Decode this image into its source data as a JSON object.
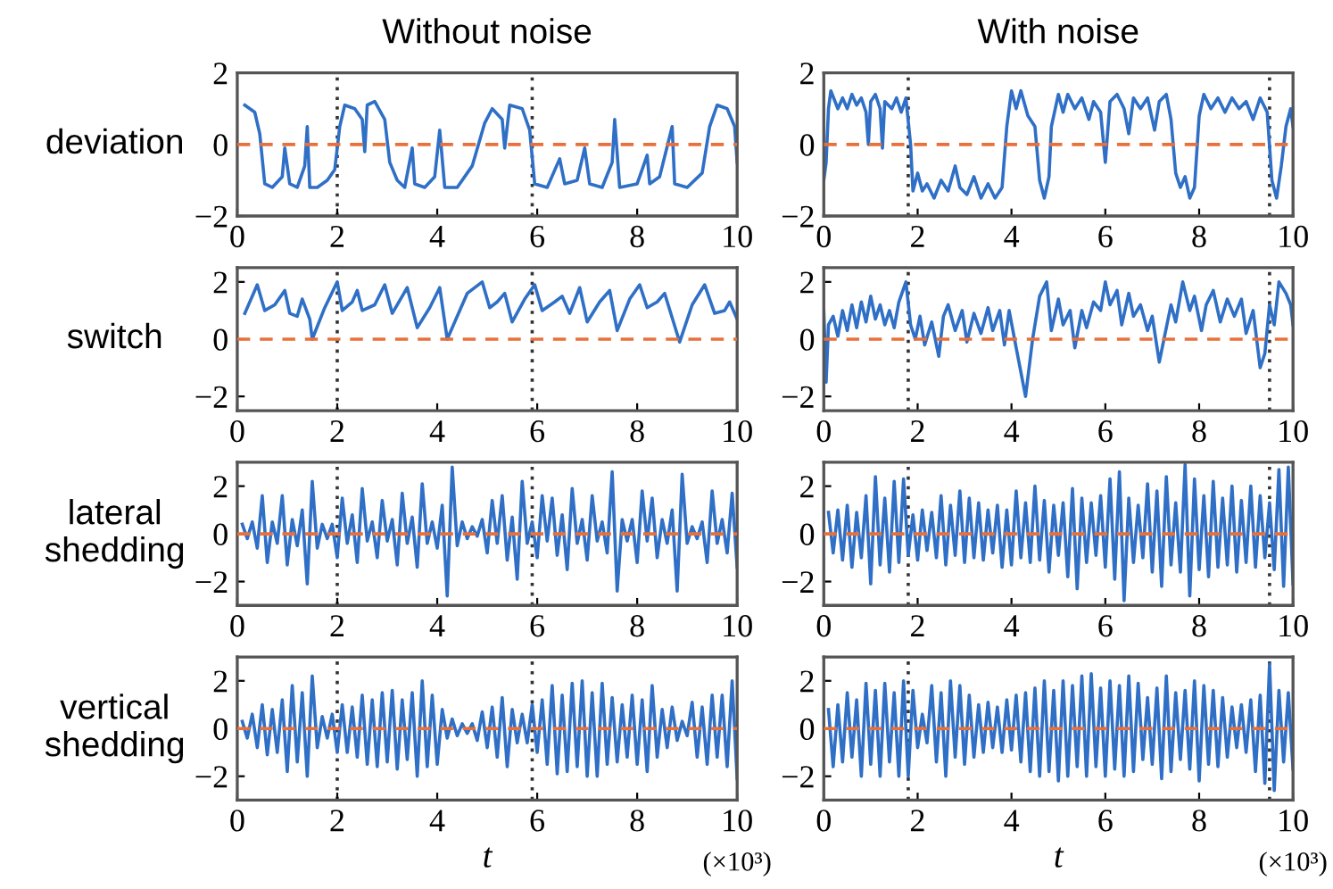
{
  "chart_data": [
    {
      "type": "line",
      "title": "Without noise",
      "ylabel": "deviation",
      "xlim": [
        0,
        10
      ],
      "xticks": [
        0,
        2,
        4,
        6,
        8,
        10
      ],
      "ylim": [
        -2,
        2
      ],
      "yticks": [
        -2,
        0,
        2
      ],
      "series": [
        {
          "color": "#2f6fc6",
          "x": [
            0.15,
            0.35,
            0.45,
            0.55,
            0.7,
            0.9,
            0.95,
            1.05,
            1.2,
            1.35,
            1.4,
            1.45,
            1.6,
            1.8,
            1.95,
            2.05,
            2.15,
            2.35,
            2.5,
            2.55,
            2.6,
            2.75,
            2.95,
            3.05,
            3.2,
            3.35,
            3.5,
            3.55,
            3.75,
            3.95,
            4.05,
            4.15,
            4.4,
            4.7,
            4.95,
            5.1,
            5.3,
            5.35,
            5.45,
            5.7,
            5.85,
            5.95,
            6.2,
            6.45,
            6.55,
            6.8,
            6.95,
            7.05,
            7.3,
            7.5,
            7.55,
            7.65,
            8.0,
            8.2,
            8.25,
            8.45,
            8.7,
            8.75,
            9.0,
            9.3,
            9.45,
            9.6,
            9.8,
            9.95,
            10
          ],
          "values": [
            1.1,
            0.9,
            0.3,
            -1.1,
            -1.2,
            -0.9,
            -0.1,
            -1.1,
            -1.2,
            -0.6,
            0.5,
            -1.2,
            -1.2,
            -1.0,
            -0.7,
            0.5,
            1.1,
            1.0,
            0.7,
            -0.2,
            1.1,
            1.2,
            0.7,
            -0.5,
            -1.0,
            -1.2,
            -0.1,
            -1.1,
            -1.2,
            -0.9,
            0.4,
            -1.2,
            -1.2,
            -0.6,
            0.6,
            1.0,
            0.7,
            -0.1,
            1.1,
            1.0,
            0.4,
            -1.1,
            -1.2,
            -0.4,
            -1.1,
            -1.0,
            -0.1,
            -1.1,
            -1.2,
            -0.5,
            0.7,
            -1.2,
            -1.1,
            -0.3,
            -1.1,
            -0.9,
            0.5,
            -1.1,
            -1.2,
            -0.8,
            0.5,
            1.1,
            1.0,
            0.5,
            -0.5
          ]
        }
      ],
      "ref_lines": [
        {
          "axis": "y",
          "value": 0,
          "color": "#e8703a",
          "line_style": "dashed"
        },
        {
          "axis": "x",
          "value": 2,
          "color": "#333333",
          "line_style": "dotted"
        },
        {
          "axis": "x",
          "value": 5.9,
          "color": "#333333",
          "line_style": "dotted"
        }
      ]
    },
    {
      "type": "line",
      "title": "With noise",
      "xlim": [
        0,
        10
      ],
      "xticks": [
        0,
        2,
        4,
        6,
        8,
        10
      ],
      "ylim": [
        -2,
        2
      ],
      "yticks": [
        -2,
        0,
        2
      ],
      "series": [
        {
          "color": "#2f6fc6",
          "x": [
            0,
            0.05,
            0.1,
            0.15,
            0.3,
            0.4,
            0.5,
            0.6,
            0.7,
            0.8,
            0.9,
            0.95,
            1.0,
            1.1,
            1.2,
            1.25,
            1.3,
            1.45,
            1.55,
            1.65,
            1.75,
            1.85,
            1.9,
            2.0,
            2.1,
            2.2,
            2.35,
            2.5,
            2.65,
            2.8,
            2.9,
            3.05,
            3.2,
            3.35,
            3.5,
            3.65,
            3.8,
            3.9,
            4.0,
            4.1,
            4.2,
            4.35,
            4.5,
            4.6,
            4.7,
            4.8,
            4.85,
            5.0,
            5.1,
            5.2,
            5.35,
            5.5,
            5.65,
            5.75,
            5.9,
            6.0,
            6.1,
            6.25,
            6.4,
            6.5,
            6.6,
            6.75,
            6.9,
            7.05,
            7.15,
            7.3,
            7.4,
            7.5,
            7.6,
            7.7,
            7.8,
            7.9,
            8.0,
            8.1,
            8.25,
            8.4,
            8.55,
            8.7,
            8.85,
            9.0,
            9.15,
            9.3,
            9.45,
            9.55,
            9.65,
            9.75,
            9.85,
            9.95,
            10
          ],
          "values": [
            -1.0,
            -0.5,
            1.0,
            1.5,
            1.0,
            1.3,
            1.0,
            1.4,
            1.1,
            1.3,
            0.9,
            0.0,
            1.2,
            1.4,
            1.0,
            -0.1,
            1.2,
            1.0,
            1.3,
            0.9,
            1.3,
            0.0,
            -1.3,
            -0.8,
            -1.3,
            -1.1,
            -1.5,
            -1.0,
            -1.3,
            -0.6,
            -1.2,
            -1.4,
            -0.9,
            -1.5,
            -1.1,
            -1.5,
            -1.2,
            0.5,
            1.5,
            1.0,
            1.5,
            0.8,
            0.5,
            -1.0,
            -1.5,
            -0.9,
            0.5,
            1.4,
            0.9,
            1.4,
            1.0,
            1.3,
            0.7,
            1.2,
            0.9,
            -0.5,
            1.2,
            1.4,
            1.0,
            0.3,
            1.3,
            1.0,
            1.3,
            0.4,
            1.2,
            1.4,
            0.7,
            -0.8,
            -1.2,
            -0.9,
            -1.5,
            -1.2,
            0.8,
            1.4,
            1.0,
            1.3,
            0.9,
            1.3,
            1.0,
            1.2,
            0.7,
            1.3,
            0.9,
            -1.0,
            -1.5,
            -0.6,
            0.5,
            1.0,
            0.5
          ]
        }
      ],
      "ref_lines": [
        {
          "axis": "y",
          "value": 0,
          "color": "#e8703a",
          "line_style": "dashed"
        },
        {
          "axis": "x",
          "value": 1.8,
          "color": "#333333",
          "line_style": "dotted"
        },
        {
          "axis": "x",
          "value": 9.5,
          "color": "#333333",
          "line_style": "dotted"
        }
      ]
    },
    {
      "type": "line",
      "ylabel": "switch",
      "xlim": [
        0,
        10
      ],
      "xticks": [
        0,
        2,
        4,
        6,
        8,
        10
      ],
      "ylim": [
        -2.5,
        2.5
      ],
      "yticks": [
        -2,
        0,
        2
      ],
      "series": [
        {
          "color": "#2f6fc6",
          "x": [
            0.15,
            0.4,
            0.55,
            0.75,
            0.95,
            1.05,
            1.2,
            1.3,
            1.45,
            1.5,
            1.75,
            2.0,
            2.1,
            2.3,
            2.4,
            2.5,
            2.75,
            2.95,
            3.1,
            3.3,
            3.4,
            3.6,
            3.85,
            4.05,
            4.2,
            4.6,
            4.9,
            5.05,
            5.2,
            5.35,
            5.5,
            5.75,
            5.95,
            6.1,
            6.35,
            6.5,
            6.65,
            6.85,
            7.0,
            7.25,
            7.45,
            7.6,
            7.85,
            8.05,
            8.2,
            8.4,
            8.55,
            8.85,
            9.1,
            9.35,
            9.55,
            9.75,
            9.85,
            10
          ],
          "values": [
            0.9,
            1.9,
            1.0,
            1.2,
            1.7,
            0.9,
            0.8,
            1.4,
            0.7,
            0.0,
            1.1,
            2.0,
            1.0,
            1.3,
            1.7,
            1.0,
            1.2,
            1.9,
            0.9,
            1.5,
            1.8,
            0.4,
            1.1,
            1.8,
            0.0,
            1.6,
            2.0,
            1.1,
            1.3,
            1.6,
            0.6,
            1.4,
            1.9,
            1.0,
            1.3,
            1.5,
            0.9,
            1.8,
            0.6,
            1.3,
            1.7,
            0.3,
            1.4,
            1.9,
            1.1,
            1.3,
            1.6,
            -0.1,
            1.2,
            1.9,
            0.9,
            1.0,
            1.3,
            0.7
          ]
        }
      ],
      "ref_lines": [
        {
          "axis": "y",
          "value": 0,
          "color": "#e8703a",
          "line_style": "dashed"
        },
        {
          "axis": "x",
          "value": 2,
          "color": "#333333",
          "line_style": "dotted"
        },
        {
          "axis": "x",
          "value": 5.9,
          "color": "#333333",
          "line_style": "dotted"
        }
      ]
    },
    {
      "type": "line",
      "xlim": [
        0,
        10
      ],
      "xticks": [
        0,
        2,
        4,
        6,
        8,
        10
      ],
      "ylim": [
        -2.5,
        2.5
      ],
      "yticks": [
        -2,
        0,
        2
      ],
      "series": [
        {
          "color": "#2f6fc6",
          "x": [
            0,
            0.05,
            0.1,
            0.2,
            0.3,
            0.4,
            0.5,
            0.6,
            0.7,
            0.8,
            0.9,
            1.0,
            1.1,
            1.2,
            1.3,
            1.4,
            1.5,
            1.6,
            1.75,
            1.85,
            1.95,
            2.05,
            2.15,
            2.3,
            2.45,
            2.55,
            2.65,
            2.8,
            2.95,
            3.05,
            3.2,
            3.35,
            3.5,
            3.6,
            3.75,
            3.85,
            3.95,
            4.1,
            4.3,
            4.45,
            4.6,
            4.75,
            4.85,
            5.0,
            5.1,
            5.25,
            5.35,
            5.5,
            5.6,
            5.75,
            5.9,
            6.0,
            6.1,
            6.25,
            6.35,
            6.5,
            6.6,
            6.75,
            6.9,
            7.0,
            7.15,
            7.3,
            7.4,
            7.5,
            7.65,
            7.8,
            7.9,
            8.05,
            8.15,
            8.3,
            8.45,
            8.6,
            8.75,
            8.9,
            9.0,
            9.15,
            9.3,
            9.4,
            9.5,
            9.6,
            9.7,
            9.85,
            9.95,
            10
          ],
          "values": [
            1.0,
            -1.5,
            0.5,
            0.8,
            0.1,
            1.0,
            0.3,
            1.2,
            0.4,
            1.3,
            0.6,
            1.5,
            0.7,
            1.2,
            0.5,
            1.0,
            0.4,
            1.3,
            2.0,
            0.5,
            0.0,
            0.8,
            -0.2,
            0.6,
            -0.6,
            0.8,
            1.2,
            0.3,
            1.0,
            -0.1,
            0.9,
            0.2,
            1.1,
            0.3,
            1.0,
            -0.2,
            1.0,
            -0.3,
            -2.0,
            0.0,
            1.5,
            2.0,
            0.3,
            1.4,
            0.5,
            1.0,
            -0.3,
            1.0,
            0.4,
            1.3,
            1.0,
            2.0,
            1.2,
            1.7,
            0.5,
            1.6,
            0.8,
            1.2,
            0.3,
            0.8,
            -0.8,
            0.4,
            1.2,
            0.6,
            2.0,
            1.0,
            1.5,
            0.3,
            1.2,
            1.7,
            0.6,
            1.4,
            0.8,
            1.4,
            0.2,
            1.0,
            -1.0,
            -0.5,
            1.2,
            0.5,
            2.0,
            1.6,
            1.2,
            0.5
          ]
        }
      ],
      "ref_lines": [
        {
          "axis": "y",
          "value": 0,
          "color": "#e8703a",
          "line_style": "dashed"
        },
        {
          "axis": "x",
          "value": 1.8,
          "color": "#333333",
          "line_style": "dotted"
        },
        {
          "axis": "x",
          "value": 9.5,
          "color": "#333333",
          "line_style": "dotted"
        }
      ]
    },
    {
      "type": "line",
      "ylabel": "lateral\nshedding",
      "xlim": [
        0,
        10
      ],
      "xticks": [
        0,
        2,
        4,
        6,
        8,
        10
      ],
      "ylim": [
        -3,
        3
      ],
      "yticks": [
        -2,
        0,
        2
      ],
      "series": [
        {
          "color": "#2f6fc6",
          "x": [
            0.1,
            0.2,
            0.3,
            0.4,
            0.5,
            0.6,
            0.7,
            0.8,
            0.9,
            1.0,
            1.1,
            1.2,
            1.3,
            1.4,
            1.5,
            1.6,
            1.7,
            1.8,
            1.9,
            2.0,
            2.1,
            2.2,
            2.3,
            2.4,
            2.5,
            2.6,
            2.7,
            2.8,
            2.9,
            3.0,
            3.1,
            3.2,
            3.3,
            3.4,
            3.5,
            3.6,
            3.7,
            3.8,
            3.9,
            4.0,
            4.1,
            4.2,
            4.3,
            4.4,
            4.5,
            4.6,
            4.7,
            4.8,
            4.9,
            5.0,
            5.1,
            5.2,
            5.3,
            5.4,
            5.5,
            5.6,
            5.7,
            5.8,
            5.9,
            6.0,
            6.1,
            6.2,
            6.3,
            6.4,
            6.5,
            6.6,
            6.7,
            6.8,
            6.9,
            7.0,
            7.1,
            7.2,
            7.3,
            7.4,
            7.5,
            7.6,
            7.7,
            7.8,
            7.9,
            8.0,
            8.1,
            8.2,
            8.3,
            8.4,
            8.5,
            8.6,
            8.7,
            8.8,
            8.9,
            9.0,
            9.1,
            9.2,
            9.3,
            9.4,
            9.5,
            9.6,
            9.7,
            9.8,
            9.9,
            10.0
          ],
          "values": [
            0.4,
            -0.2,
            0.5,
            -0.6,
            1.6,
            -1.2,
            0.5,
            -0.4,
            1.6,
            -1.3,
            0.6,
            -0.5,
            1.0,
            -2.1,
            2.2,
            -0.6,
            0.4,
            -0.2,
            0.4,
            -1.0,
            1.5,
            -0.4,
            0.8,
            -1.2,
            1.9,
            -0.3,
            0.5,
            -1.0,
            1.4,
            -0.3,
            0.6,
            -1.3,
            1.7,
            -0.4,
            0.7,
            -1.4,
            2.1,
            -0.4,
            0.5,
            -0.6,
            1.2,
            -2.6,
            2.8,
            -0.5,
            0.5,
            -0.2,
            0.3,
            -0.1,
            0.6,
            -0.8,
            1.4,
            -0.4,
            1.6,
            -1.1,
            0.7,
            -1.9,
            2.2,
            -0.4,
            0.5,
            -1.0,
            1.6,
            -0.3,
            1.5,
            -0.9,
            0.8,
            -1.5,
            1.9,
            -0.4,
            0.6,
            -1.1,
            1.6,
            -0.3,
            0.5,
            -0.8,
            2.6,
            -2.4,
            0.6,
            -0.3,
            0.6,
            -1.2,
            1.8,
            -0.3,
            1.5,
            -1.0,
            0.6,
            -0.4,
            1.0,
            -2.4,
            2.5,
            -0.4,
            0.3,
            -0.2,
            0.5,
            -1.2,
            1.8,
            -0.4,
            0.6,
            -0.8,
            1.7,
            -1.4
          ]
        }
      ],
      "ref_lines": [
        {
          "axis": "y",
          "value": 0,
          "color": "#e8703a",
          "line_style": "dashed"
        },
        {
          "axis": "x",
          "value": 2,
          "color": "#333333",
          "line_style": "dotted"
        },
        {
          "axis": "x",
          "value": 5.9,
          "color": "#333333",
          "line_style": "dotted"
        }
      ]
    },
    {
      "type": "line",
      "xlim": [
        0,
        10
      ],
      "xticks": [
        0,
        2,
        4,
        6,
        8,
        10
      ],
      "ylim": [
        -3,
        3
      ],
      "yticks": [
        -2,
        0,
        2
      ],
      "series": [
        {
          "color": "#2f6fc6",
          "x": [
            0.1,
            0.2,
            0.3,
            0.4,
            0.5,
            0.6,
            0.7,
            0.8,
            0.9,
            1.0,
            1.1,
            1.2,
            1.3,
            1.4,
            1.5,
            1.6,
            1.7,
            1.8,
            1.9,
            2.0,
            2.1,
            2.2,
            2.3,
            2.4,
            2.5,
            2.6,
            2.7,
            2.8,
            2.9,
            3.0,
            3.1,
            3.2,
            3.3,
            3.4,
            3.5,
            3.6,
            3.7,
            3.8,
            3.9,
            4.0,
            4.1,
            4.2,
            4.3,
            4.4,
            4.5,
            4.6,
            4.7,
            4.8,
            4.9,
            5.0,
            5.1,
            5.2,
            5.3,
            5.4,
            5.5,
            5.6,
            5.7,
            5.8,
            5.9,
            6.0,
            6.1,
            6.2,
            6.3,
            6.4,
            6.5,
            6.6,
            6.7,
            6.8,
            6.9,
            7.0,
            7.1,
            7.2,
            7.3,
            7.4,
            7.5,
            7.6,
            7.7,
            7.8,
            7.9,
            8.0,
            8.1,
            8.2,
            8.3,
            8.4,
            8.5,
            8.6,
            8.7,
            8.8,
            8.9,
            9.0,
            9.1,
            9.2,
            9.3,
            9.4,
            9.5,
            9.6,
            9.7,
            9.8,
            9.9,
            10.0
          ],
          "values": [
            0.9,
            -0.8,
            1.0,
            -1.1,
            1.2,
            -1.4,
            0.9,
            -1.0,
            1.6,
            -2.1,
            2.4,
            -1.3,
            1.5,
            -1.6,
            2.2,
            -1.2,
            2.3,
            -0.9,
            0.8,
            -1.1,
            1.0,
            -0.7,
            0.9,
            -1.0,
            1.6,
            -1.3,
            1.2,
            -0.9,
            1.8,
            -1.2,
            1.5,
            -1.0,
            1.3,
            -1.1,
            1.0,
            -0.8,
            1.2,
            -1.4,
            1.0,
            -1.3,
            1.8,
            -1.0,
            1.3,
            -1.2,
            2.0,
            -1.1,
            1.4,
            -1.6,
            1.2,
            -0.9,
            1.3,
            -1.8,
            1.9,
            -2.3,
            1.5,
            -1.2,
            1.3,
            -0.9,
            1.6,
            -1.4,
            2.3,
            -1.9,
            2.6,
            -2.8,
            1.5,
            -1.2,
            1.2,
            -1.0,
            2.1,
            -1.6,
            1.8,
            -2.2,
            2.4,
            -1.3,
            1.3,
            -1.6,
            2.9,
            -2.6,
            2.3,
            -1.5,
            1.6,
            -1.8,
            2.2,
            -1.4,
            1.5,
            -1.3,
            2.0,
            -1.6,
            1.4,
            -1.2,
            2.0,
            -1.4,
            1.6,
            -1.0,
            1.3,
            -1.5,
            2.7,
            -2.2,
            2.8,
            -2.1
          ]
        }
      ],
      "ref_lines": [
        {
          "axis": "y",
          "value": 0,
          "color": "#e8703a",
          "line_style": "dashed"
        },
        {
          "axis": "x",
          "value": 1.8,
          "color": "#333333",
          "line_style": "dotted"
        },
        {
          "axis": "x",
          "value": 9.5,
          "color": "#333333",
          "line_style": "dotted"
        }
      ]
    },
    {
      "type": "line",
      "ylabel": "vertical\nshedding",
      "xlabel": "t",
      "annotations": [
        "(×10³)"
      ],
      "xlim": [
        0,
        10
      ],
      "xticks": [
        0,
        2,
        4,
        6,
        8,
        10
      ],
      "ylim": [
        -3,
        3
      ],
      "yticks": [
        -2,
        0,
        2
      ],
      "series": [
        {
          "color": "#2f6fc6",
          "x": [
            0.1,
            0.2,
            0.3,
            0.4,
            0.5,
            0.6,
            0.7,
            0.8,
            0.9,
            1.0,
            1.1,
            1.2,
            1.3,
            1.4,
            1.5,
            1.6,
            1.7,
            1.8,
            1.9,
            2.0,
            2.1,
            2.2,
            2.3,
            2.4,
            2.5,
            2.6,
            2.7,
            2.8,
            2.9,
            3.0,
            3.1,
            3.2,
            3.3,
            3.4,
            3.5,
            3.6,
            3.7,
            3.8,
            3.9,
            4.0,
            4.1,
            4.2,
            4.3,
            4.4,
            4.5,
            4.6,
            4.7,
            4.8,
            4.9,
            5.0,
            5.1,
            5.2,
            5.3,
            5.4,
            5.5,
            5.6,
            5.7,
            5.8,
            5.9,
            6.0,
            6.1,
            6.2,
            6.3,
            6.4,
            6.5,
            6.6,
            6.7,
            6.8,
            6.9,
            7.0,
            7.1,
            7.2,
            7.3,
            7.4,
            7.5,
            7.6,
            7.7,
            7.8,
            7.9,
            8.0,
            8.1,
            8.2,
            8.3,
            8.4,
            8.5,
            8.6,
            8.7,
            8.8,
            8.9,
            9.0,
            9.1,
            9.2,
            9.3,
            9.4,
            9.5,
            9.6,
            9.7,
            9.8,
            9.9,
            10.0
          ],
          "values": [
            0.3,
            -0.4,
            0.6,
            -0.8,
            1.0,
            -1.1,
            0.8,
            -1.0,
            1.2,
            -1.8,
            1.8,
            -1.4,
            1.5,
            -2.0,
            2.2,
            -0.8,
            0.5,
            -0.4,
            0.6,
            -1.0,
            1.0,
            -1.0,
            0.9,
            -1.2,
            1.4,
            -1.5,
            1.2,
            -1.6,
            1.5,
            -1.4,
            1.6,
            -1.7,
            1.2,
            -1.3,
            1.5,
            -2.0,
            2.0,
            -1.6,
            1.4,
            -1.5,
            0.8,
            -0.4,
            0.4,
            -0.3,
            0.2,
            -0.2,
            0.2,
            -0.5,
            0.7,
            -0.8,
            0.9,
            -1.2,
            1.3,
            -1.6,
            0.8,
            -0.6,
            0.6,
            -0.6,
            1.0,
            -1.0,
            1.2,
            -1.5,
            1.8,
            -1.9,
            1.4,
            -1.8,
            1.9,
            -1.6,
            2.0,
            -2.0,
            1.5,
            -2.0,
            1.9,
            -1.5,
            1.3,
            -1.4,
            1.0,
            -1.2,
            1.4,
            -1.5,
            1.2,
            -1.8,
            1.8,
            -1.2,
            0.8,
            -0.8,
            0.9,
            -0.5,
            0.3,
            -0.3,
            1.1,
            -1.2,
            0.9,
            -1.5,
            1.4,
            -1.2,
            1.4,
            -1.6,
            2.0,
            -2.1
          ]
        }
      ],
      "ref_lines": [
        {
          "axis": "y",
          "value": 0,
          "color": "#e8703a",
          "line_style": "dashed"
        },
        {
          "axis": "x",
          "value": 2,
          "color": "#333333",
          "line_style": "dotted"
        },
        {
          "axis": "x",
          "value": 5.9,
          "color": "#333333",
          "line_style": "dotted"
        }
      ]
    },
    {
      "type": "line",
      "xlabel": "t",
      "annotations": [
        "(×10³)"
      ],
      "xlim": [
        0,
        10
      ],
      "xticks": [
        0,
        2,
        4,
        6,
        8,
        10
      ],
      "ylim": [
        -3,
        3
      ],
      "yticks": [
        -2,
        0,
        2
      ],
      "series": [
        {
          "color": "#2f6fc6",
          "x": [
            0.1,
            0.2,
            0.3,
            0.4,
            0.5,
            0.6,
            0.7,
            0.8,
            0.9,
            1.0,
            1.1,
            1.2,
            1.3,
            1.4,
            1.5,
            1.6,
            1.7,
            1.8,
            1.9,
            2.0,
            2.1,
            2.2,
            2.3,
            2.4,
            2.5,
            2.6,
            2.7,
            2.8,
            2.9,
            3.0,
            3.1,
            3.2,
            3.3,
            3.4,
            3.5,
            3.6,
            3.7,
            3.8,
            3.9,
            4.0,
            4.1,
            4.2,
            4.3,
            4.4,
            4.5,
            4.6,
            4.7,
            4.8,
            4.9,
            5.0,
            5.1,
            5.2,
            5.3,
            5.4,
            5.5,
            5.6,
            5.7,
            5.8,
            5.9,
            6.0,
            6.1,
            6.2,
            6.3,
            6.4,
            6.5,
            6.6,
            6.7,
            6.8,
            6.9,
            7.0,
            7.1,
            7.2,
            7.3,
            7.4,
            7.5,
            7.6,
            7.7,
            7.8,
            7.9,
            8.0,
            8.1,
            8.2,
            8.3,
            8.4,
            8.5,
            8.6,
            8.7,
            8.8,
            8.9,
            9.0,
            9.1,
            9.2,
            9.3,
            9.4,
            9.5,
            9.6,
            9.7,
            9.8,
            9.9,
            10.0
          ],
          "values": [
            0.8,
            -1.6,
            1.0,
            -1.4,
            1.5,
            -1.2,
            1.2,
            -2.0,
            1.9,
            -1.5,
            1.6,
            -2.0,
            1.9,
            -1.4,
            1.5,
            -2.0,
            2.0,
            -2.0,
            1.6,
            -0.8,
            0.6,
            -0.6,
            1.8,
            -1.4,
            1.5,
            -2.0,
            2.0,
            -1.2,
            1.8,
            -1.5,
            1.4,
            -1.2,
            1.0,
            -1.0,
            1.1,
            -0.8,
            0.9,
            -1.0,
            1.2,
            -0.9,
            1.4,
            -1.4,
            1.5,
            -1.8,
            1.7,
            -2.0,
            2.0,
            -1.8,
            1.6,
            -2.2,
            2.0,
            -2.0,
            1.8,
            -1.6,
            2.2,
            -2.0,
            2.3,
            -1.6,
            1.7,
            -2.0,
            2.0,
            -1.7,
            1.8,
            -2.0,
            2.2,
            -1.8,
            1.9,
            -1.3,
            1.3,
            -1.5,
            1.7,
            -2.1,
            2.2,
            -1.8,
            1.5,
            -1.3,
            1.6,
            -1.7,
            2.0,
            -2.2,
            1.8,
            -1.5,
            1.6,
            -1.6,
            1.3,
            -1.2,
            0.9,
            -0.8,
            1.0,
            -1.0,
            1.2,
            -1.8,
            1.4,
            -2.3,
            2.7,
            -2.6,
            1.6,
            -1.4,
            1.5,
            -1.7
          ]
        }
      ],
      "ref_lines": [
        {
          "axis": "y",
          "value": 0,
          "color": "#e8703a",
          "line_style": "dashed"
        },
        {
          "axis": "x",
          "value": 1.8,
          "color": "#333333",
          "line_style": "dotted"
        },
        {
          "axis": "x",
          "value": 9.5,
          "color": "#333333",
          "line_style": "dotted"
        }
      ]
    }
  ]
}
